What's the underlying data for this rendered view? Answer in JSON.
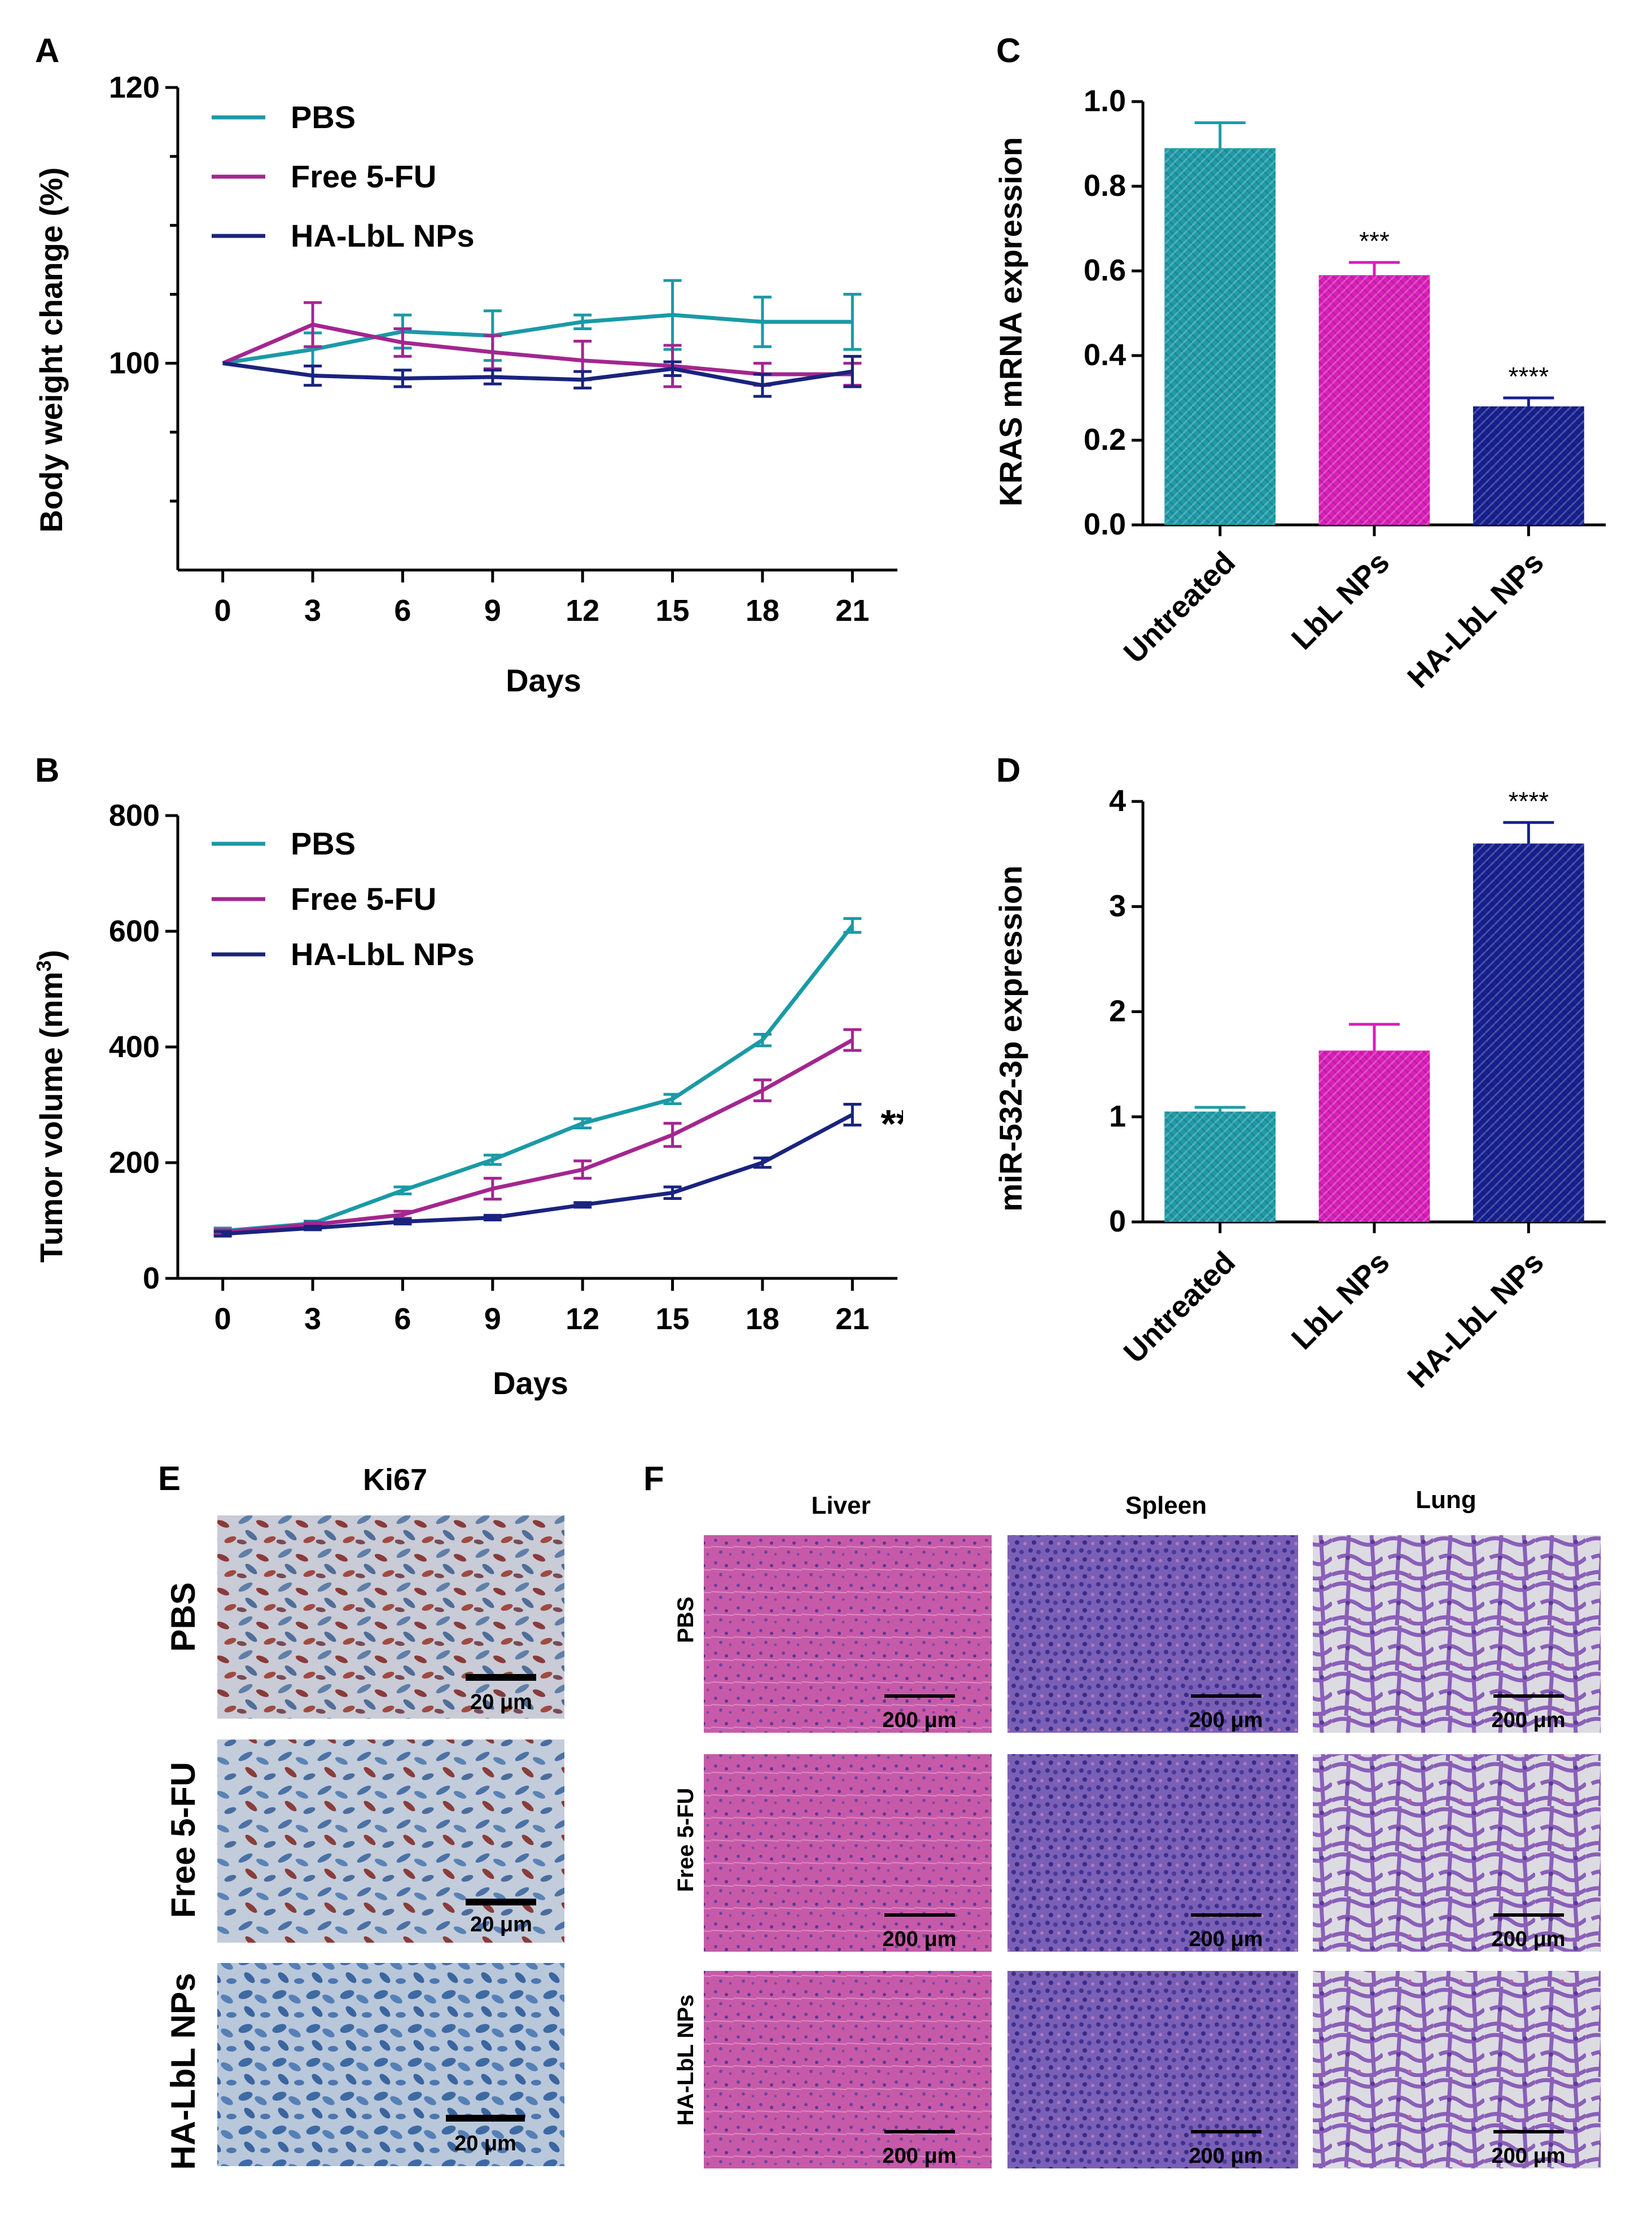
{
  "colors": {
    "pbs": "#1a9aa6",
    "free5fu": "#a3268f",
    "halbl": "#1a237e",
    "bar_untreated": "#1f9ba7",
    "bar_lbl": "#d81fb8",
    "bar_halbl": "#17208f"
  },
  "panel_letters": {
    "A": "A",
    "B": "B",
    "C": "C",
    "D": "D",
    "E": "E",
    "F": "F"
  },
  "chart_data": [
    {
      "id": "A",
      "type": "line",
      "xlabel": "Days",
      "ylabel": "Body weight change (%)",
      "x": [
        0,
        3,
        6,
        9,
        12,
        15,
        18,
        21
      ],
      "xlim": [
        -1.5,
        22.5
      ],
      "ylim": [
        85,
        120
      ],
      "y_ticks": [
        100,
        120
      ],
      "y_minor_ticks": [
        90,
        95,
        105,
        110,
        115
      ],
      "series": [
        {
          "name": "PBS",
          "values": [
            100,
            101,
            102.3,
            102,
            103,
            103.5,
            103,
            103
          ],
          "errors": [
            0,
            1.2,
            1.2,
            1.8,
            0.5,
            2.5,
            1.8,
            2
          ]
        },
        {
          "name": "Free 5-FU",
          "values": [
            100,
            102.8,
            101.5,
            100.8,
            100.2,
            99.8,
            99.2,
            99.2
          ],
          "errors": [
            0,
            1.6,
            1,
            1.2,
            1.4,
            1.5,
            0.8,
            0.8
          ]
        },
        {
          "name": "HA-LbL NPs",
          "values": [
            100,
            99.1,
            98.9,
            99,
            98.8,
            99.6,
            98.4,
            99.4
          ],
          "errors": [
            0,
            0.7,
            0.6,
            0.5,
            0.6,
            0.5,
            0.8,
            1.1
          ]
        }
      ]
    },
    {
      "id": "B",
      "type": "line",
      "xlabel": "Days",
      "ylabel_main": "Tumor volume (mm",
      "ylabel_sup": "3",
      "ylabel_end": ")",
      "x": [
        0,
        3,
        6,
        9,
        12,
        15,
        18,
        21
      ],
      "xlim": [
        -1.5,
        22.5
      ],
      "ylim": [
        0,
        800
      ],
      "y_ticks": [
        0,
        200,
        400,
        600,
        800
      ],
      "annotation": "**",
      "series": [
        {
          "name": "PBS",
          "values": [
            82,
            95,
            152,
            205,
            268,
            310,
            412,
            610
          ],
          "errors": [
            5,
            4,
            6,
            8,
            8,
            8,
            10,
            12
          ]
        },
        {
          "name": "Free 5-FU",
          "values": [
            80,
            93,
            110,
            155,
            188,
            248,
            325,
            412
          ],
          "errors": [
            4,
            4,
            6,
            18,
            15,
            20,
            18,
            18
          ]
        },
        {
          "name": "HA-LbL NPs",
          "values": [
            77,
            87,
            98,
            105,
            127,
            148,
            200,
            283
          ],
          "errors": [
            4,
            3,
            4,
            4,
            4,
            10,
            8,
            18
          ]
        }
      ]
    },
    {
      "id": "C",
      "type": "bar",
      "ylabel": "KRAS mRNA expression",
      "categories": [
        "Untreated",
        "LbL NPs",
        "HA-LbL NPs"
      ],
      "values": [
        0.89,
        0.59,
        0.28
      ],
      "errors": [
        0.06,
        0.03,
        0.02
      ],
      "significance": [
        "",
        "***",
        "****"
      ],
      "ylim": [
        0,
        1.0
      ],
      "y_ticks": [
        0.0,
        0.2,
        0.4,
        0.6,
        0.8,
        1.0
      ],
      "y_tick_labels": [
        "0.0",
        "0.2",
        "0.4",
        "0.6",
        "0.8",
        "1.0"
      ]
    },
    {
      "id": "D",
      "type": "bar",
      "ylabel": "miR-532-3p expression",
      "categories": [
        "Untreated",
        "LbL NPs",
        "HA-LbL NPs"
      ],
      "values": [
        1.05,
        1.63,
        3.6
      ],
      "errors": [
        0.04,
        0.25,
        0.2
      ],
      "significance": [
        "",
        "",
        "****"
      ],
      "ylim": [
        0,
        4
      ],
      "y_ticks": [
        0,
        1,
        2,
        3,
        4
      ],
      "y_tick_labels": [
        "0",
        "1",
        "2",
        "3",
        "4"
      ]
    }
  ],
  "panel_e": {
    "title": "Ki67",
    "rows": [
      "PBS",
      "Free 5-FU",
      "HA-LbL NPs"
    ],
    "scale_labels": [
      "20 μm",
      "20 μm",
      "20 μm"
    ]
  },
  "panel_f": {
    "columns": [
      "Liver",
      "Spleen",
      "Lung"
    ],
    "rows": [
      "PBS",
      "Free 5-FU",
      "HA-LbL NPs"
    ],
    "scale_label": "200 μm"
  }
}
